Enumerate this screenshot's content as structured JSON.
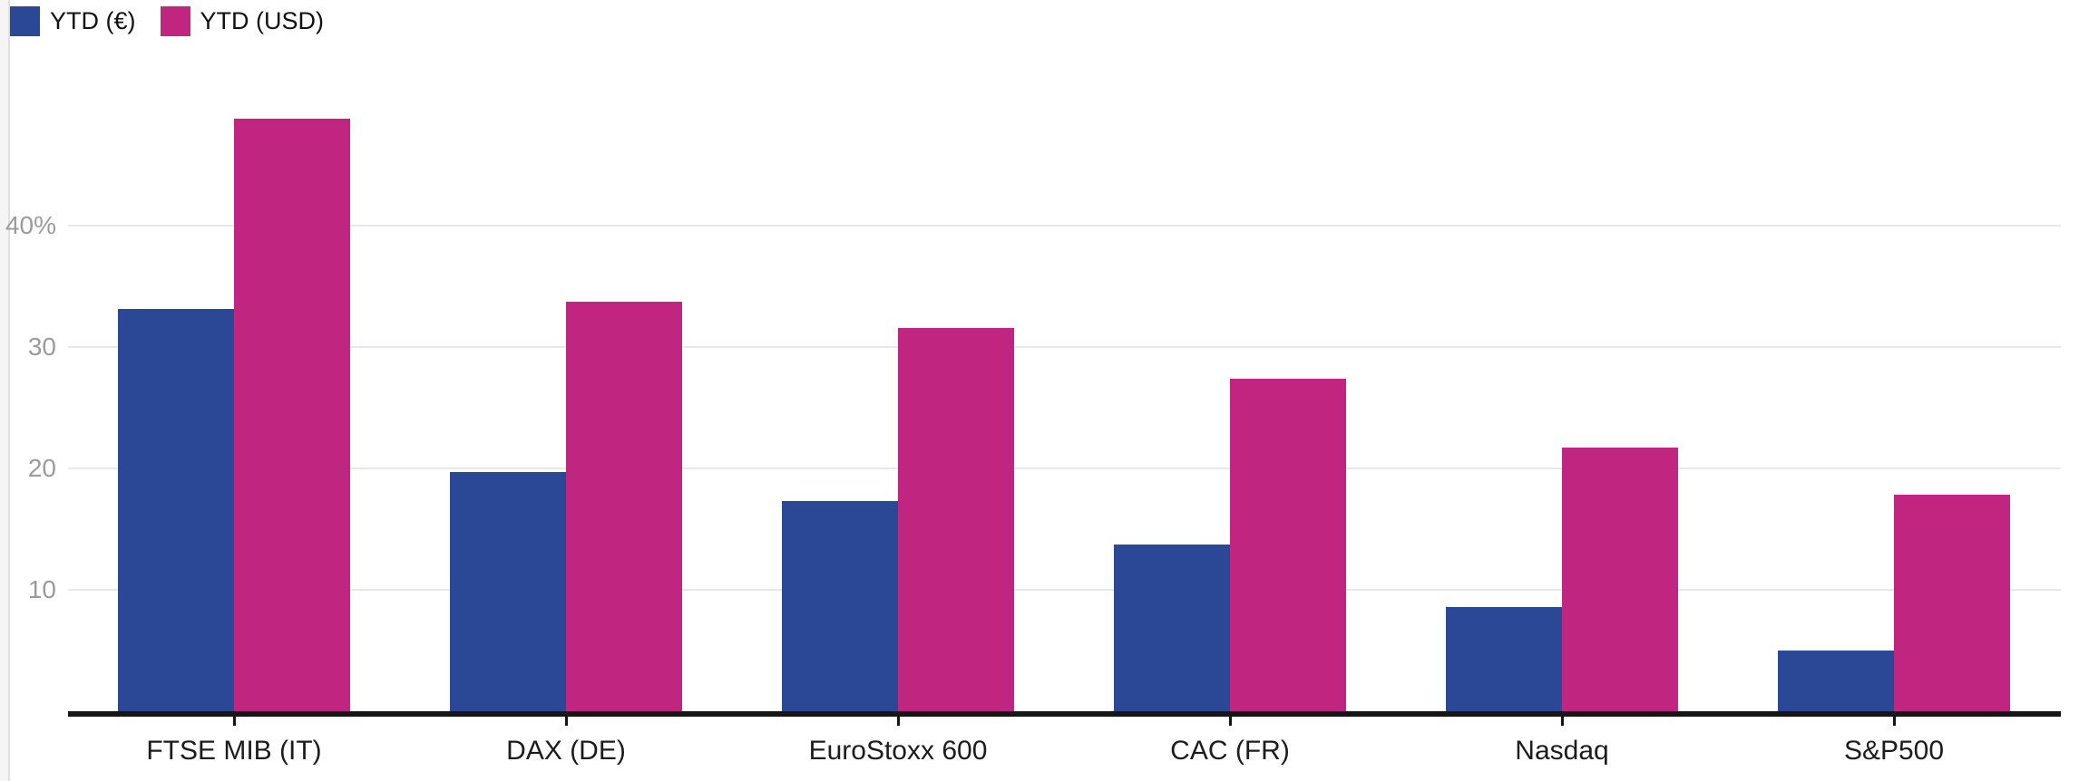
{
  "legend": {
    "items": [
      {
        "label": "YTD (€)",
        "color": "#2a4896"
      },
      {
        "label": "YTD (USD)",
        "color": "#c0267f"
      }
    ]
  },
  "chart_data": {
    "type": "bar",
    "title": "",
    "xlabel": "",
    "ylabel": "",
    "categories": [
      "FTSE MIB (IT)",
      "DAX (DE)",
      "EuroStoxx 600",
      "CAC (FR)",
      "Nasdaq",
      "S&P500"
    ],
    "series": [
      {
        "name": "YTD (€)",
        "color": "#2a4896",
        "values": [
          33.1,
          19.7,
          17.3,
          13.7,
          8.6,
          5.0
        ]
      },
      {
        "name": "YTD (USD)",
        "color": "#c0267f",
        "values": [
          48.8,
          33.7,
          31.6,
          27.4,
          21.7,
          17.8
        ]
      }
    ],
    "y_ticks": [
      {
        "value": 40,
        "label": "40%"
      },
      {
        "value": 30,
        "label": "30"
      },
      {
        "value": 20,
        "label": "20"
      },
      {
        "value": 10,
        "label": "10"
      }
    ],
    "ylim": [
      0,
      50
    ],
    "grid": true,
    "legend_position": "top-left",
    "unit": "percent"
  }
}
